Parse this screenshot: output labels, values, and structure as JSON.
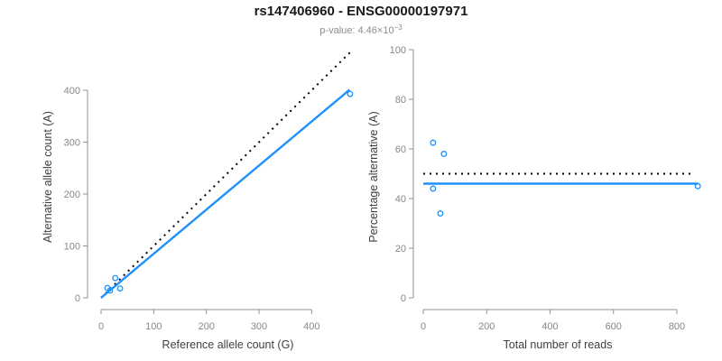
{
  "title": "rs147406960 - ENSG00000197971",
  "subtitle": {
    "text": "p-value: 4.46×10",
    "exponent": "−3"
  },
  "colors": {
    "background": "#ffffff",
    "title": "#1a1a1a",
    "subtitle": "#8c8c8c",
    "fit_line": "#1e90ff",
    "identity_line": "#000000",
    "point": "#1e90ff",
    "axis_line": "#909090",
    "tick_label": "#878787",
    "axis_label": "#404040"
  },
  "chart_data": [
    {
      "name": "allele-counts",
      "type": "scatter",
      "xlabel": "Reference allele count (G)",
      "ylabel": "Alternative allele count (A)",
      "xticks": [
        0,
        100,
        200,
        300,
        400
      ],
      "yticks": [
        0,
        100,
        200,
        300,
        400
      ],
      "xlim": [
        0,
        475
      ],
      "ylim": [
        0,
        475
      ],
      "grid": false,
      "points": [
        {
          "x": 12,
          "y": 19
        },
        {
          "x": 27,
          "y": 38
        },
        {
          "x": 17,
          "y": 14
        },
        {
          "x": 36,
          "y": 18
        },
        {
          "x": 473,
          "y": 393
        }
      ],
      "lines": [
        {
          "name": "identity-line",
          "style": "dotted",
          "color_key": "identity_line",
          "from": {
            "x": 0,
            "y": 0
          },
          "to": {
            "x": 475,
            "y": 475
          }
        },
        {
          "name": "fit-line",
          "style": "solid",
          "color_key": "fit_line",
          "slope": 0.85,
          "from": {
            "x": 0,
            "y": 0
          },
          "to": {
            "x": 472,
            "y": 401
          }
        }
      ]
    },
    {
      "name": "percentage-alternative",
      "type": "scatter",
      "xlabel": "Total number of reads",
      "ylabel": "Percentage alternative (A)",
      "xticks": [
        0,
        200,
        400,
        600,
        800
      ],
      "yticks": [
        0,
        20,
        40,
        60,
        80,
        100
      ],
      "xlim": [
        0,
        880
      ],
      "ylim": [
        0,
        100
      ],
      "grid": false,
      "points": [
        {
          "x": 31,
          "y": 62.5
        },
        {
          "x": 65,
          "y": 58
        },
        {
          "x": 31,
          "y": 44
        },
        {
          "x": 54,
          "y": 34
        },
        {
          "x": 866,
          "y": 45
        }
      ],
      "lines": [
        {
          "name": "identity-line",
          "style": "dotted",
          "color_key": "identity_line",
          "value": 50,
          "from": {
            "x": 0,
            "y": 50
          },
          "to": {
            "x": 848,
            "y": 50
          }
        },
        {
          "name": "fit-line",
          "style": "solid",
          "color_key": "fit_line",
          "value": 46,
          "from": {
            "x": 0,
            "y": 46
          },
          "to": {
            "x": 866,
            "y": 46
          }
        }
      ]
    }
  ]
}
